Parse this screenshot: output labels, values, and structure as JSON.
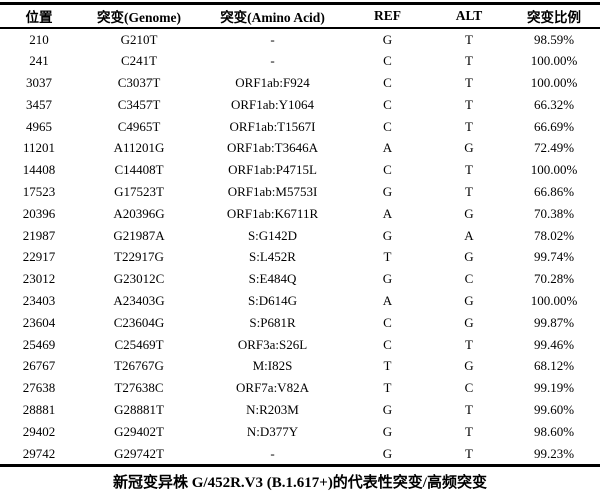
{
  "table": {
    "col_keys": [
      "position",
      "mutation-genome",
      "mutation-amino-acid",
      "ref",
      "alt",
      "mutation-ratio"
    ],
    "headers": [
      "位置",
      "突变(Genome)",
      "突变(Amino Acid)",
      "REF",
      "ALT",
      "突变比例"
    ],
    "rows": [
      [
        "210",
        "G210T",
        "-",
        "G",
        "T",
        "98.59%"
      ],
      [
        "241",
        "C241T",
        "-",
        "C",
        "T",
        "100.00%"
      ],
      [
        "3037",
        "C3037T",
        "ORF1ab:F924",
        "C",
        "T",
        "100.00%"
      ],
      [
        "3457",
        "C3457T",
        "ORF1ab:Y1064",
        "C",
        "T",
        "66.32%"
      ],
      [
        "4965",
        "C4965T",
        "ORF1ab:T1567I",
        "C",
        "T",
        "66.69%"
      ],
      [
        "11201",
        "A11201G",
        "ORF1ab:T3646A",
        "A",
        "G",
        "72.49%"
      ],
      [
        "14408",
        "C14408T",
        "ORF1ab:P4715L",
        "C",
        "T",
        "100.00%"
      ],
      [
        "17523",
        "G17523T",
        "ORF1ab:M5753I",
        "G",
        "T",
        "66.86%"
      ],
      [
        "20396",
        "A20396G",
        "ORF1ab:K6711R",
        "A",
        "G",
        "70.38%"
      ],
      [
        "21987",
        "G21987A",
        "S:G142D",
        "G",
        "A",
        "78.02%"
      ],
      [
        "22917",
        "T22917G",
        "S:L452R",
        "T",
        "G",
        "99.74%"
      ],
      [
        "23012",
        "G23012C",
        "S:E484Q",
        "G",
        "C",
        "70.28%"
      ],
      [
        "23403",
        "A23403G",
        "S:D614G",
        "A",
        "G",
        "100.00%"
      ],
      [
        "23604",
        "C23604G",
        "S:P681R",
        "C",
        "G",
        "99.87%"
      ],
      [
        "25469",
        "C25469T",
        "ORF3a:S26L",
        "C",
        "T",
        "99.46%"
      ],
      [
        "26767",
        "T26767G",
        "M:I82S",
        "T",
        "G",
        "68.12%"
      ],
      [
        "27638",
        "T27638C",
        "ORF7a:V82A",
        "T",
        "C",
        "99.19%"
      ],
      [
        "28881",
        "G28881T",
        "N:R203M",
        "G",
        "T",
        "99.60%"
      ],
      [
        "29402",
        "G29402T",
        "N:D377Y",
        "G",
        "T",
        "98.60%"
      ],
      [
        "29742",
        "G29742T",
        "-",
        "G",
        "T",
        "99.23%"
      ]
    ]
  },
  "caption": "新冠变异株 G/452R.V3 (B.1.617+)的代表性突变/高频突变",
  "colors": {
    "background": "#ffffff",
    "text": "#000000",
    "border": "#000000"
  }
}
